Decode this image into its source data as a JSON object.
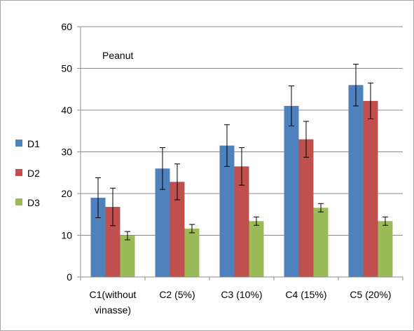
{
  "chart_data": {
    "type": "bar",
    "annotation": "Peanut",
    "categories": [
      [
        "C1(without",
        "vinasse)"
      ],
      [
        "C2 (5%)"
      ],
      [
        "C3 (10%)"
      ],
      [
        "C4 (15%)"
      ],
      [
        "C5 (20%)"
      ]
    ],
    "series": [
      {
        "name": "D1",
        "color": "#4f81bd",
        "values": [
          19,
          26,
          31.5,
          41,
          46
        ],
        "errors": [
          4.8,
          5,
          5,
          4.8,
          5
        ]
      },
      {
        "name": "D2",
        "color": "#c0504d",
        "values": [
          16.8,
          22.8,
          26.5,
          33,
          42.2
        ],
        "errors": [
          4.5,
          4.3,
          4.5,
          4.3,
          4.3
        ]
      },
      {
        "name": "D3",
        "color": "#9bbb59",
        "values": [
          9.9,
          11.6,
          13.4,
          16.6,
          13.4
        ],
        "errors": [
          1,
          1,
          1,
          1,
          1
        ]
      }
    ],
    "y_ticks": [
      0,
      10,
      20,
      30,
      40,
      50,
      60
    ],
    "ylim": [
      0,
      60
    ],
    "grid": true,
    "legend_position": "left"
  }
}
